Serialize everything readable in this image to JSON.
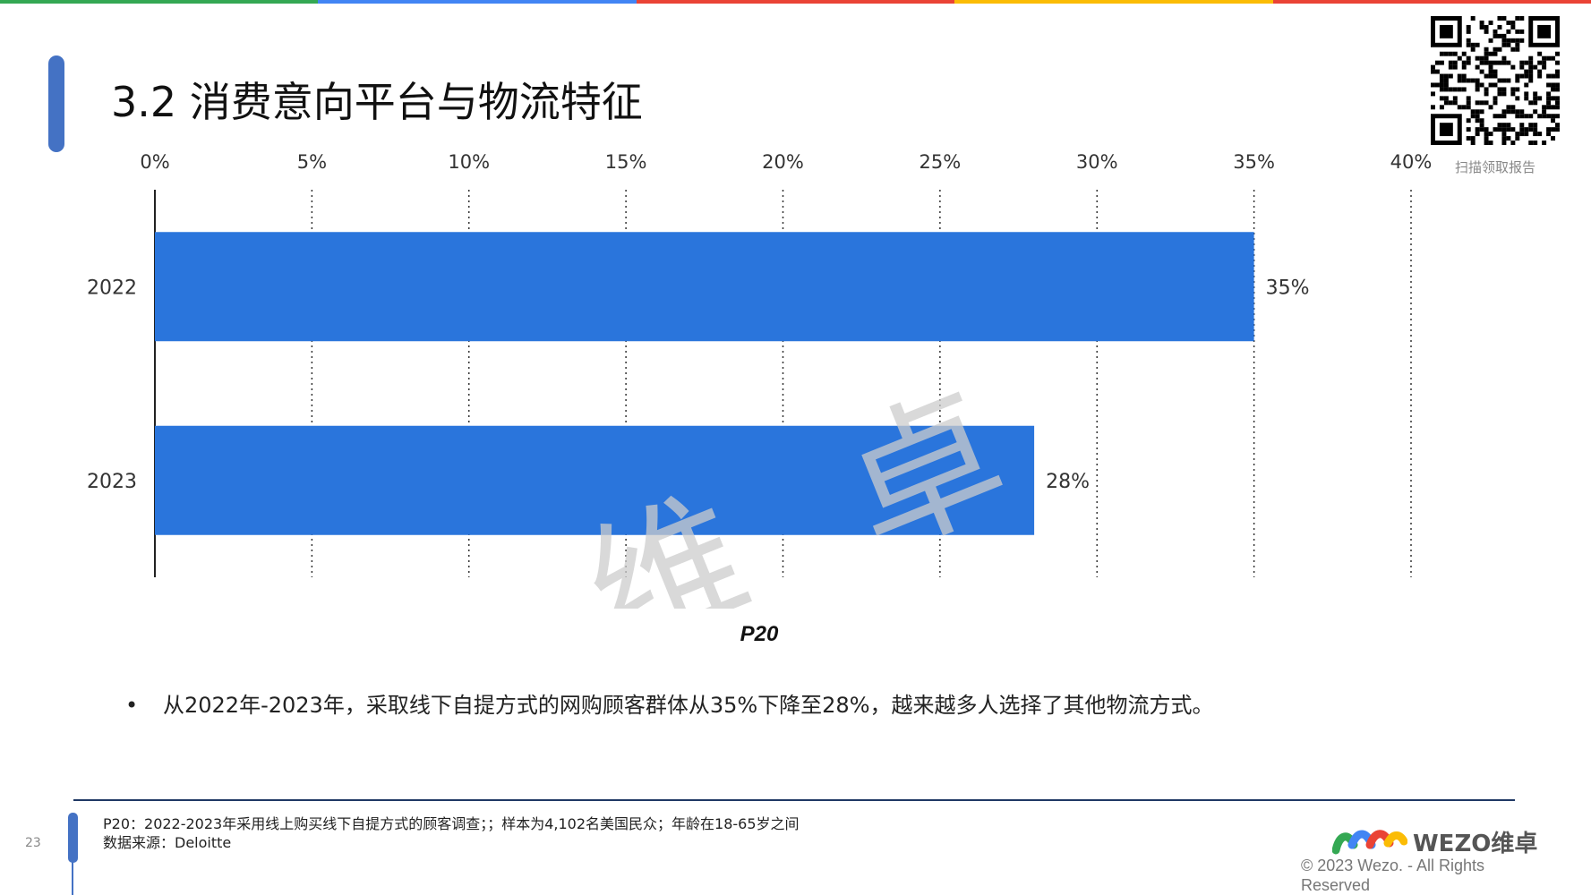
{
  "header": {
    "title": "3.2 消费意向平台与物流特征",
    "qr_caption": "扫描领取报告"
  },
  "colors": {
    "bar": "#2a75dc",
    "accent": "#4472c4",
    "footer_line": "#1f3864",
    "top_bar": [
      "#34a853",
      "#4285f4",
      "#ea4335",
      "#fbbc05",
      "#ea4335"
    ]
  },
  "chart_data": {
    "type": "bar",
    "orientation": "horizontal",
    "categories": [
      "2022",
      "2023"
    ],
    "values": [
      35,
      28
    ],
    "data_labels": [
      "35%",
      "28%"
    ],
    "xlim": [
      0,
      40
    ],
    "x_ticks": [
      "0%",
      "5%",
      "10%",
      "15%",
      "20%",
      "25%",
      "30%",
      "35%",
      "40%"
    ],
    "x_axis_position": "top",
    "grid": "vertical-dotted",
    "legend": "none",
    "subtitle": "P20"
  },
  "watermark": "维卓",
  "bullet": "从2022年-2023年，采取线下自提方式的网购顾客群体从35%下降至28%，越来越多人选择了其他物流方式。",
  "footer": {
    "page_number": "23",
    "note_line1": "P20：2022-2023年采用线上购买线下自提方式的顾客调查；；样本为4,102名美国民众；年龄在18-65岁之间",
    "note_line2": "数据来源：Deloitte",
    "logo_text": "WEZO维卓",
    "copyright": "© 2023 Wezo. - All Rights Reserved"
  }
}
